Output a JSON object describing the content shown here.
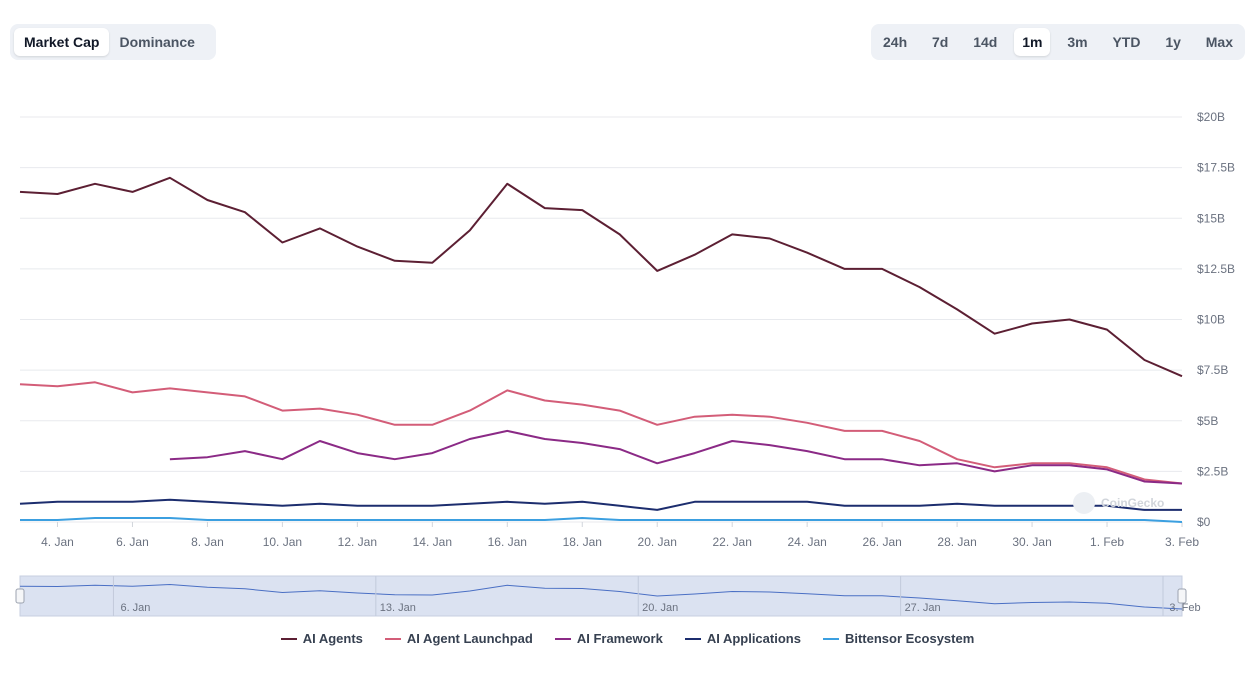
{
  "toggle": {
    "options": [
      "Market Cap",
      "Dominance"
    ],
    "active": "Market Cap"
  },
  "ranges": {
    "options": [
      "24h",
      "7d",
      "14d",
      "1m",
      "3m",
      "YTD",
      "1y",
      "Max"
    ],
    "active": "1m"
  },
  "watermark": "CoinGecko",
  "chart_data": {
    "type": "line",
    "y_ticks": [
      "$0",
      "$2.5B",
      "$5B",
      "$7.5B",
      "$10B",
      "$12.5B",
      "$15B",
      "$17.5B",
      "$20B"
    ],
    "ylim": [
      0,
      20
    ],
    "y_unit": "B USD",
    "x_ticks": [
      "4. Jan",
      "6. Jan",
      "8. Jan",
      "10. Jan",
      "12. Jan",
      "14. Jan",
      "16. Jan",
      "18. Jan",
      "20. Jan",
      "22. Jan",
      "24. Jan",
      "26. Jan",
      "28. Jan",
      "30. Jan",
      "1. Feb",
      "3. Feb"
    ],
    "x_start": "3. Jan",
    "x_end": "3. Feb",
    "grid": true,
    "legend_position": "bottom",
    "navigator_ticks": [
      "6. Jan",
      "13. Jan",
      "20. Jan",
      "27. Jan",
      "3. Feb"
    ],
    "series": [
      {
        "name": "AI Agents",
        "color": "#5c1f33",
        "values": [
          16.3,
          16.2,
          16.7,
          16.3,
          17.0,
          15.9,
          15.3,
          13.8,
          14.5,
          13.6,
          12.9,
          12.8,
          14.4,
          16.7,
          15.5,
          15.4,
          14.2,
          12.4,
          13.2,
          14.2,
          14.0,
          13.3,
          12.5,
          12.5,
          11.6,
          10.5,
          9.3,
          9.8,
          10.0,
          9.5,
          8.0,
          7.2
        ]
      },
      {
        "name": "AI Agent Launchpad",
        "color": "#d35d78",
        "values": [
          6.8,
          6.7,
          6.9,
          6.4,
          6.6,
          6.4,
          6.2,
          5.5,
          5.6,
          5.3,
          4.8,
          4.8,
          5.5,
          6.5,
          6.0,
          5.8,
          5.5,
          4.8,
          5.2,
          5.3,
          5.2,
          4.9,
          4.5,
          4.5,
          4.0,
          3.1,
          2.7,
          2.9,
          2.9,
          2.7,
          2.1,
          1.9
        ]
      },
      {
        "name": "AI Framework",
        "color": "#8b2a86",
        "values": [
          null,
          null,
          null,
          null,
          3.1,
          3.2,
          3.5,
          3.1,
          4.0,
          3.4,
          3.1,
          3.4,
          4.1,
          4.5,
          4.1,
          3.9,
          3.6,
          2.9,
          3.4,
          4.0,
          3.8,
          3.5,
          3.1,
          3.1,
          2.8,
          2.9,
          2.5,
          2.8,
          2.8,
          2.6,
          2.0,
          1.9
        ]
      },
      {
        "name": "AI Applications",
        "color": "#1c2d6e",
        "values": [
          0.9,
          1.0,
          1.0,
          1.0,
          1.1,
          1.0,
          0.9,
          0.8,
          0.9,
          0.8,
          0.8,
          0.8,
          0.9,
          1.0,
          0.9,
          1.0,
          0.8,
          0.6,
          1.0,
          1.0,
          1.0,
          1.0,
          0.8,
          0.8,
          0.8,
          0.9,
          0.8,
          0.8,
          0.8,
          0.8,
          0.6,
          0.6
        ]
      },
      {
        "name": "Bittensor Ecosystem",
        "color": "#3b9fe0",
        "values": [
          0.1,
          0.1,
          0.2,
          0.2,
          0.2,
          0.1,
          0.1,
          0.1,
          0.1,
          0.1,
          0.1,
          0.1,
          0.1,
          0.1,
          0.1,
          0.2,
          0.1,
          0.1,
          0.1,
          0.1,
          0.1,
          0.1,
          0.1,
          0.1,
          0.1,
          0.1,
          0.1,
          0.1,
          0.1,
          0.1,
          0.1,
          0.0
        ]
      }
    ]
  }
}
